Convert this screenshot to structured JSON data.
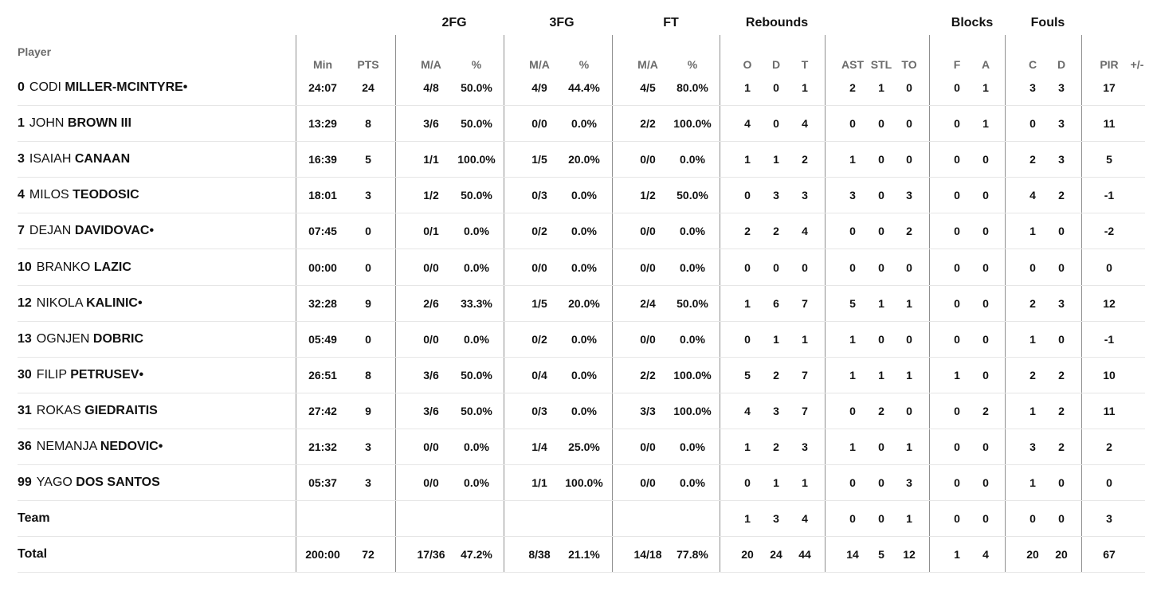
{
  "header": {
    "player_label": "Player",
    "groups": [
      "2FG",
      "3FG",
      "FT",
      "Rebounds",
      "Blocks",
      "Fouls"
    ],
    "columns": [
      "Min",
      "PTS",
      "M/A",
      "%",
      "M/A",
      "%",
      "M/A",
      "%",
      "O",
      "D",
      "T",
      "AST",
      "STL",
      "TO",
      "F",
      "A",
      "C",
      "D",
      "PIR",
      "+/-"
    ]
  },
  "players": [
    {
      "number": "0",
      "first": "CODI",
      "last": "MILLER-MCINTYRE",
      "starter": true,
      "stats": [
        "24:07",
        "24",
        "4/8",
        "50.0%",
        "4/9",
        "44.4%",
        "4/5",
        "80.0%",
        "1",
        "0",
        "1",
        "2",
        "1",
        "0",
        "0",
        "1",
        "3",
        "3",
        "17",
        ""
      ]
    },
    {
      "number": "1",
      "first": "JOHN",
      "last": "BROWN III",
      "starter": false,
      "stats": [
        "13:29",
        "8",
        "3/6",
        "50.0%",
        "0/0",
        "0.0%",
        "2/2",
        "100.0%",
        "4",
        "0",
        "4",
        "0",
        "0",
        "0",
        "0",
        "1",
        "0",
        "3",
        "11",
        ""
      ]
    },
    {
      "number": "3",
      "first": "ISAIAH",
      "last": "CANAAN",
      "starter": false,
      "stats": [
        "16:39",
        "5",
        "1/1",
        "100.0%",
        "1/5",
        "20.0%",
        "0/0",
        "0.0%",
        "1",
        "1",
        "2",
        "1",
        "0",
        "0",
        "0",
        "0",
        "2",
        "3",
        "5",
        ""
      ]
    },
    {
      "number": "4",
      "first": "MILOS",
      "last": "TEODOSIC",
      "starter": false,
      "stats": [
        "18:01",
        "3",
        "1/2",
        "50.0%",
        "0/3",
        "0.0%",
        "1/2",
        "50.0%",
        "0",
        "3",
        "3",
        "3",
        "0",
        "3",
        "0",
        "0",
        "4",
        "2",
        "-1",
        ""
      ]
    },
    {
      "number": "7",
      "first": "DEJAN",
      "last": "DAVIDOVAC",
      "starter": true,
      "stats": [
        "07:45",
        "0",
        "0/1",
        "0.0%",
        "0/2",
        "0.0%",
        "0/0",
        "0.0%",
        "2",
        "2",
        "4",
        "0",
        "0",
        "2",
        "0",
        "0",
        "1",
        "0",
        "-2",
        ""
      ]
    },
    {
      "number": "10",
      "first": "BRANKO",
      "last": "LAZIC",
      "starter": false,
      "stats": [
        "00:00",
        "0",
        "0/0",
        "0.0%",
        "0/0",
        "0.0%",
        "0/0",
        "0.0%",
        "0",
        "0",
        "0",
        "0",
        "0",
        "0",
        "0",
        "0",
        "0",
        "0",
        "0",
        ""
      ]
    },
    {
      "number": "12",
      "first": "NIKOLA",
      "last": "KALINIC",
      "starter": true,
      "stats": [
        "32:28",
        "9",
        "2/6",
        "33.3%",
        "1/5",
        "20.0%",
        "2/4",
        "50.0%",
        "1",
        "6",
        "7",
        "5",
        "1",
        "1",
        "0",
        "0",
        "2",
        "3",
        "12",
        ""
      ]
    },
    {
      "number": "13",
      "first": "OGNJEN",
      "last": "DOBRIC",
      "starter": false,
      "stats": [
        "05:49",
        "0",
        "0/0",
        "0.0%",
        "0/2",
        "0.0%",
        "0/0",
        "0.0%",
        "0",
        "1",
        "1",
        "1",
        "0",
        "0",
        "0",
        "0",
        "1",
        "0",
        "-1",
        ""
      ]
    },
    {
      "number": "30",
      "first": "FILIP",
      "last": "PETRUSEV",
      "starter": true,
      "stats": [
        "26:51",
        "8",
        "3/6",
        "50.0%",
        "0/4",
        "0.0%",
        "2/2",
        "100.0%",
        "5",
        "2",
        "7",
        "1",
        "1",
        "1",
        "1",
        "0",
        "2",
        "2",
        "10",
        ""
      ]
    },
    {
      "number": "31",
      "first": "ROKAS",
      "last": "GIEDRAITIS",
      "starter": false,
      "stats": [
        "27:42",
        "9",
        "3/6",
        "50.0%",
        "0/3",
        "0.0%",
        "3/3",
        "100.0%",
        "4",
        "3",
        "7",
        "0",
        "2",
        "0",
        "0",
        "2",
        "1",
        "2",
        "11",
        ""
      ]
    },
    {
      "number": "36",
      "first": "NEMANJA",
      "last": "NEDOVIC",
      "starter": true,
      "stats": [
        "21:32",
        "3",
        "0/0",
        "0.0%",
        "1/4",
        "25.0%",
        "0/0",
        "0.0%",
        "1",
        "2",
        "3",
        "1",
        "0",
        "1",
        "0",
        "0",
        "3",
        "2",
        "2",
        ""
      ]
    },
    {
      "number": "99",
      "first": "YAGO",
      "last": "DOS SANTOS",
      "starter": false,
      "stats": [
        "05:37",
        "3",
        "0/0",
        "0.0%",
        "1/1",
        "100.0%",
        "0/0",
        "0.0%",
        "0",
        "1",
        "1",
        "0",
        "0",
        "3",
        "0",
        "0",
        "1",
        "0",
        "0",
        ""
      ]
    }
  ],
  "team": {
    "label": "Team",
    "stats": [
      "",
      "",
      "",
      "",
      "",
      "",
      "",
      "",
      "1",
      "3",
      "4",
      "0",
      "0",
      "1",
      "0",
      "0",
      "0",
      "0",
      "3",
      ""
    ]
  },
  "total": {
    "label": "Total",
    "stats": [
      "200:00",
      "72",
      "17/36",
      "47.2%",
      "8/38",
      "21.1%",
      "14/18",
      "77.8%",
      "20",
      "24",
      "44",
      "14",
      "5",
      "12",
      "1",
      "4",
      "20",
      "20",
      "67",
      ""
    ]
  },
  "starter_marker": "•"
}
